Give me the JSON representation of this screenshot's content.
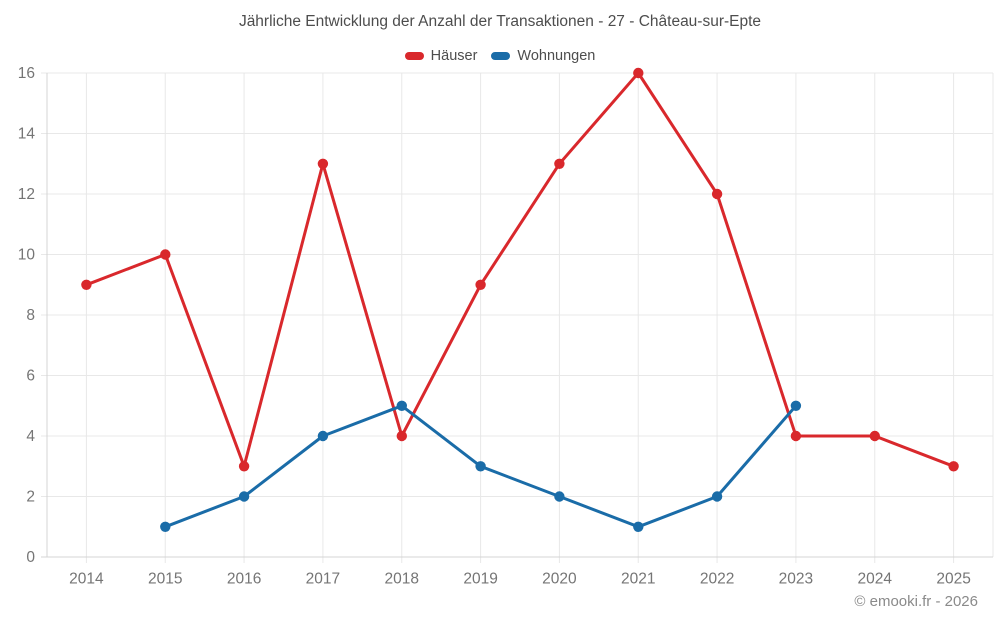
{
  "chart_data": {
    "type": "line",
    "title": "Jährliche Entwicklung der Anzahl der Transaktionen - 27 - Château-sur-Epte",
    "x": [
      "2014",
      "2015",
      "2016",
      "2017",
      "2018",
      "2019",
      "2020",
      "2021",
      "2022",
      "2023",
      "2024",
      "2025"
    ],
    "series": [
      {
        "name": "Häuser",
        "color": "#d9282c",
        "values": [
          9,
          10,
          3,
          13,
          4,
          9,
          13,
          16,
          12,
          4,
          4,
          3
        ]
      },
      {
        "name": "Wohnungen",
        "color": "#1a6ca8",
        "values": [
          null,
          1,
          2,
          4,
          5,
          3,
          2,
          1,
          2,
          5,
          null,
          null
        ]
      }
    ],
    "xlabel": "",
    "ylabel": "",
    "ylim": [
      0,
      16
    ],
    "yticks": [
      0,
      2,
      4,
      6,
      8,
      10,
      12,
      14,
      16
    ],
    "grid": true,
    "legend_position": "top",
    "colors": {
      "grid": "#e8e8e8",
      "axis": "#d4d4d4",
      "tick_label": "#757575",
      "title_text": "#4d4d4d",
      "copyright_text": "#8a8a8a"
    }
  },
  "footer": {
    "copyright": "© emooki.fr - 2026"
  }
}
